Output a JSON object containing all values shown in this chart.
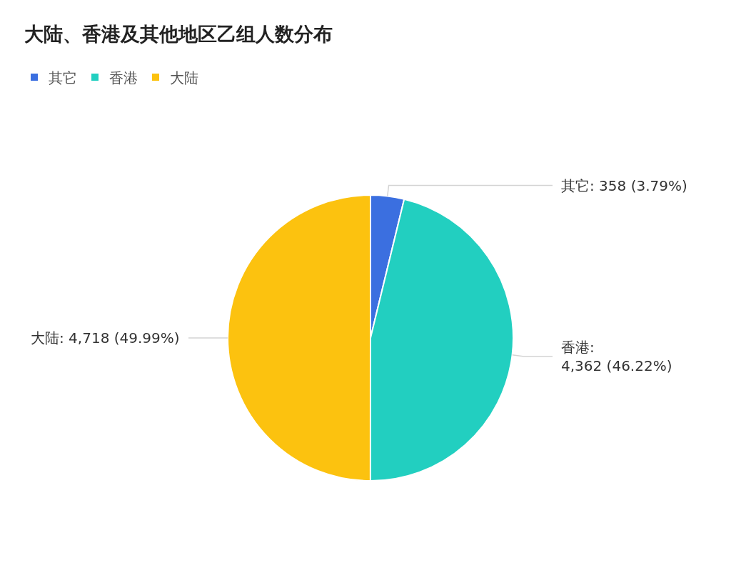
{
  "chart_data": {
    "type": "pie",
    "title": "大陆、香港及其他地区乙组人数分布",
    "categories": [
      "其它",
      "香港",
      "大陆"
    ],
    "values": [
      358,
      4362,
      4718
    ],
    "colors": [
      "#3b6fe0",
      "#22cfc0",
      "#fcc20f"
    ],
    "value_labels": [
      "其它: 358 (3.79%)",
      "香港: 4,362 (46.22%)",
      "大陆: 4,718 (49.99%)"
    ],
    "legend": "top left"
  }
}
